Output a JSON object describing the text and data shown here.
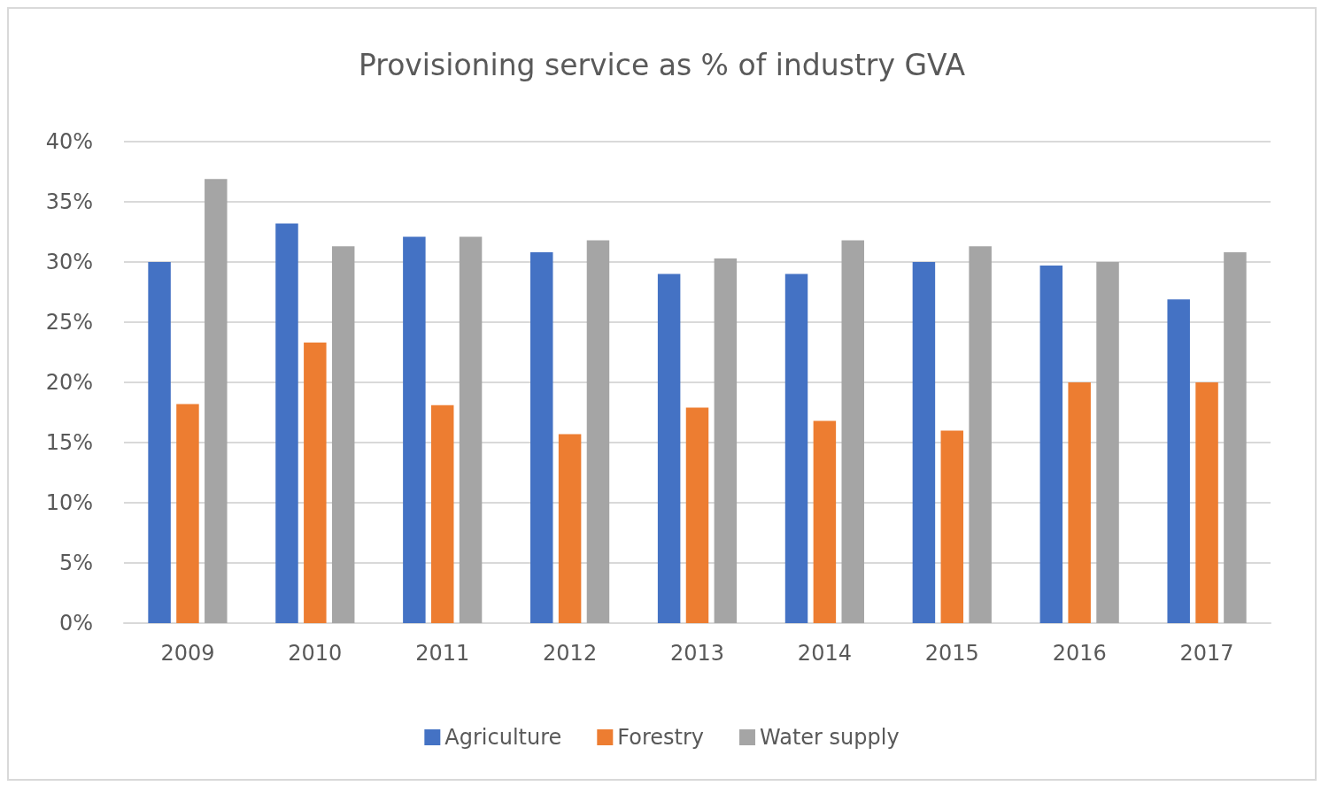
{
  "chart_data": {
    "type": "bar",
    "title": "Provisioning service as % of industry GVA",
    "categories": [
      "2009",
      "2010",
      "2011",
      "2012",
      "2013",
      "2014",
      "2015",
      "2016",
      "2017"
    ],
    "series": [
      {
        "name": "Agriculture",
        "color": "#4472c4",
        "values": [
          30,
          33.2,
          32.1,
          30.8,
          29,
          29,
          30,
          29.7,
          26.9
        ]
      },
      {
        "name": "Forestry",
        "color": "#ed7d31",
        "values": [
          18.2,
          23.3,
          18.1,
          15.7,
          17.9,
          16.8,
          16,
          20,
          20
        ]
      },
      {
        "name": "Water supply",
        "color": "#a5a5a5",
        "values": [
          36.9,
          31.3,
          32.1,
          31.8,
          30.3,
          31.8,
          31.3,
          30,
          30.8
        ]
      }
    ],
    "ylim": [
      0,
      40
    ],
    "yticks": [
      {
        "value": 0,
        "label": "0%"
      },
      {
        "value": 5,
        "label": "5%"
      },
      {
        "value": 10,
        "label": "10%"
      },
      {
        "value": 15,
        "label": "15%"
      },
      {
        "value": 20,
        "label": "20%"
      },
      {
        "value": 25,
        "label": "25%"
      },
      {
        "value": 30,
        "label": "30%"
      },
      {
        "value": 35,
        "label": "35%"
      },
      {
        "value": 40,
        "label": "40%"
      }
    ],
    "grid": "y",
    "legend": "bottom"
  }
}
